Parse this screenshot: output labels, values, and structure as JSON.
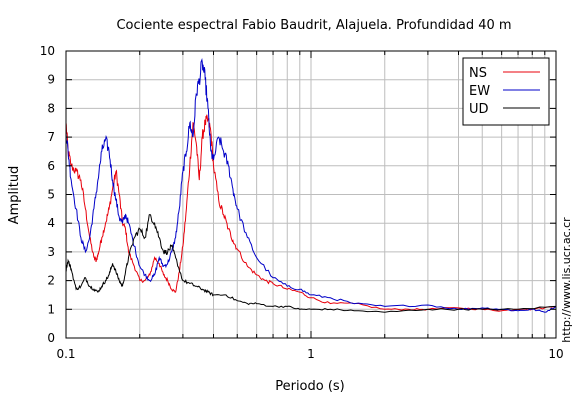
{
  "chart_data": {
    "type": "line",
    "title": "Cociente espectral Fabio Baudrit, Alajuela. Profundidad 40 m",
    "xlabel": "Periodo (s)",
    "ylabel": "Amplitud",
    "x_scale": "log",
    "xlim": [
      0.1,
      10
    ],
    "ylim": [
      0,
      10
    ],
    "x_ticks": [
      0.1,
      1,
      10
    ],
    "x_tick_labels": [
      "0.1",
      "1",
      "10"
    ],
    "y_ticks": [
      0,
      1,
      2,
      3,
      4,
      5,
      6,
      7,
      8,
      9,
      10
    ],
    "y_tick_labels": [
      "0",
      "1",
      "2",
      "3",
      "4",
      "5",
      "6",
      "7",
      "8",
      "9",
      "10"
    ],
    "grid": true,
    "legend_position": "top-right",
    "credit": "http://www.lis.ucr.ac.cr",
    "series": [
      {
        "name": "NS",
        "color": "#e8000b",
        "x": [
          0.1,
          0.102,
          0.105,
          0.11,
          0.115,
          0.12,
          0.125,
          0.13,
          0.133,
          0.136,
          0.14,
          0.145,
          0.15,
          0.155,
          0.16,
          0.165,
          0.17,
          0.175,
          0.18,
          0.19,
          0.2,
          0.21,
          0.22,
          0.23,
          0.24,
          0.25,
          0.26,
          0.27,
          0.28,
          0.29,
          0.3,
          0.31,
          0.32,
          0.33,
          0.34,
          0.35,
          0.36,
          0.37,
          0.38,
          0.39,
          0.4,
          0.42,
          0.44,
          0.46,
          0.48,
          0.5,
          0.55,
          0.6,
          0.65,
          0.7,
          0.8,
          0.9,
          1.0,
          1.2,
          1.5,
          2.0,
          2.5,
          3.0,
          4.0,
          5.0,
          6.0,
          7.0,
          8.0,
          10.0
        ],
        "values": [
          7.5,
          6.5,
          6.0,
          5.8,
          5.5,
          4.5,
          3.5,
          2.8,
          2.7,
          3.0,
          3.5,
          4.0,
          4.5,
          5.2,
          5.8,
          5.0,
          4.0,
          3.8,
          3.0,
          2.5,
          2.0,
          2.0,
          2.2,
          2.8,
          2.6,
          2.2,
          2.0,
          1.7,
          1.6,
          2.3,
          3.2,
          4.5,
          6.0,
          7.5,
          6.8,
          5.5,
          7.0,
          7.5,
          7.6,
          7.2,
          6.0,
          4.8,
          4.3,
          3.8,
          3.4,
          3.1,
          2.5,
          2.2,
          2.0,
          1.9,
          1.7,
          1.6,
          1.4,
          1.2,
          1.2,
          1.0,
          1.0,
          1.0,
          1.05,
          1.0,
          0.95,
          1.0,
          1.0,
          1.1
        ]
      },
      {
        "name": "EW",
        "color": "#0000c8",
        "x": [
          0.1,
          0.102,
          0.105,
          0.11,
          0.115,
          0.12,
          0.125,
          0.13,
          0.135,
          0.14,
          0.145,
          0.15,
          0.155,
          0.16,
          0.165,
          0.17,
          0.175,
          0.18,
          0.19,
          0.2,
          0.21,
          0.22,
          0.23,
          0.24,
          0.25,
          0.26,
          0.27,
          0.28,
          0.29,
          0.3,
          0.31,
          0.32,
          0.33,
          0.34,
          0.35,
          0.36,
          0.37,
          0.38,
          0.39,
          0.4,
          0.42,
          0.44,
          0.46,
          0.48,
          0.5,
          0.55,
          0.6,
          0.7,
          0.8,
          0.9,
          1.0,
          1.2,
          1.5,
          2.0,
          3.0,
          4.0,
          5.0,
          6.0,
          7.0,
          8.0,
          9.0,
          10.0
        ],
        "values": [
          7.2,
          6.5,
          5.5,
          4.5,
          3.5,
          3.0,
          3.5,
          4.5,
          5.5,
          6.5,
          6.9,
          6.5,
          5.5,
          4.8,
          4.2,
          4.0,
          4.3,
          4.0,
          3.2,
          2.5,
          2.2,
          2.0,
          2.2,
          2.8,
          2.5,
          2.6,
          3.0,
          3.5,
          4.5,
          5.8,
          6.5,
          7.5,
          7.0,
          8.5,
          9.0,
          9.6,
          9.0,
          8.0,
          6.5,
          6.2,
          7.0,
          6.5,
          6.0,
          5.2,
          4.5,
          3.5,
          2.8,
          2.1,
          1.8,
          1.7,
          1.5,
          1.4,
          1.2,
          1.1,
          1.15,
          1.0,
          1.05,
          1.0,
          0.95,
          1.0,
          0.9,
          1.1
        ]
      },
      {
        "name": "UD",
        "color": "#000000",
        "x": [
          0.1,
          0.102,
          0.105,
          0.11,
          0.115,
          0.12,
          0.125,
          0.13,
          0.135,
          0.14,
          0.145,
          0.15,
          0.155,
          0.16,
          0.165,
          0.17,
          0.175,
          0.18,
          0.19,
          0.2,
          0.21,
          0.22,
          0.23,
          0.24,
          0.25,
          0.26,
          0.27,
          0.28,
          0.3,
          0.32,
          0.34,
          0.36,
          0.38,
          0.4,
          0.45,
          0.5,
          0.55,
          0.6,
          0.7,
          0.8,
          0.9,
          1.0,
          1.2,
          1.5,
          2.0,
          3.0,
          4.0,
          5.0,
          7.0,
          10.0
        ],
        "values": [
          2.4,
          2.7,
          2.4,
          1.7,
          1.8,
          2.1,
          1.8,
          1.7,
          1.6,
          1.8,
          2.0,
          2.2,
          2.6,
          2.3,
          2.0,
          1.8,
          2.3,
          2.8,
          3.5,
          3.8,
          3.5,
          4.3,
          4.0,
          3.5,
          3.0,
          3.0,
          3.2,
          2.8,
          2.0,
          1.9,
          1.8,
          1.7,
          1.6,
          1.5,
          1.5,
          1.3,
          1.2,
          1.2,
          1.1,
          1.1,
          1.0,
          1.0,
          1.0,
          0.95,
          0.9,
          1.0,
          1.0,
          1.0,
          1.0,
          1.1
        ]
      }
    ]
  }
}
